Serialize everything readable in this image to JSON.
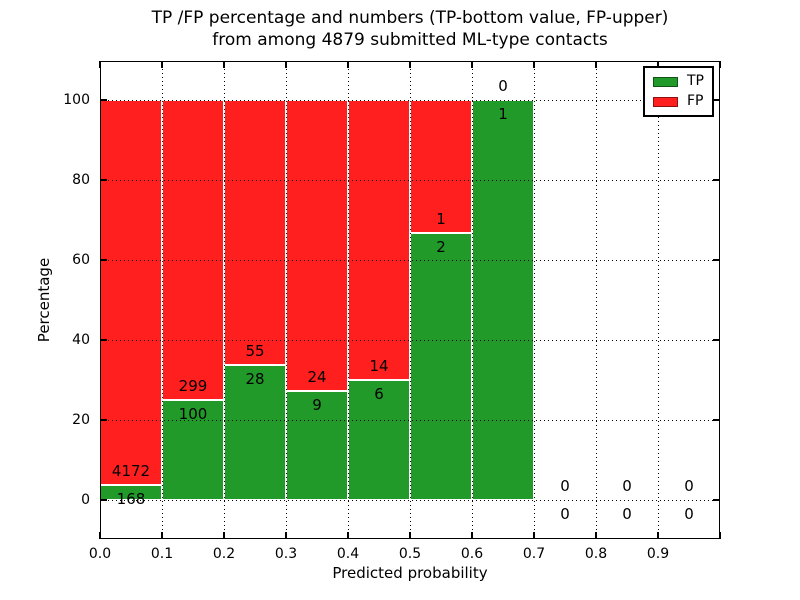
{
  "chart": {
    "title_line1": "TP /FP percentage and numbers (TP-bottom value, FP-upper)",
    "title_line2": "from among 4879 submitted ML-type contacts",
    "xlabel": "Predicted probability",
    "ylabel": "Percentage"
  },
  "chart_data": {
    "type": "bar",
    "stacked": true,
    "normalized": "percent",
    "title": "TP /FP percentage and numbers (TP-bottom value, FP-upper) from among 4879 submitted ML-type contacts",
    "xlabel": "Predicted probability",
    "ylabel": "Percentage",
    "xlim": [
      0.0,
      1.0
    ],
    "ylim": [
      -9.75,
      109.75
    ],
    "x_tick_labels": [
      "0.0",
      "0.1",
      "0.2",
      "0.3",
      "0.4",
      "0.5",
      "0.6",
      "0.7",
      "0.8",
      "0.9"
    ],
    "y_tick_values": [
      0,
      20,
      40,
      60,
      80,
      100
    ],
    "grid": "dotted",
    "legend": {
      "position": "upper right",
      "items": [
        {
          "name": "TP",
          "label": "TP",
          "color": "#229a2a"
        },
        {
          "name": "FP",
          "label": "FP",
          "color": "#ff1f1f"
        }
      ]
    },
    "annotation_rule": "FP count printed above TP/FP boundary, TP count printed below it",
    "bins": [
      {
        "range": [
          0.0,
          0.1
        ],
        "tp_count": 168,
        "fp_count": 4172,
        "tp_pct": 3.87
      },
      {
        "range": [
          0.1,
          0.2
        ],
        "tp_count": 100,
        "fp_count": 299,
        "tp_pct": 25.06
      },
      {
        "range": [
          0.2,
          0.3
        ],
        "tp_count": 28,
        "fp_count": 55,
        "tp_pct": 33.73
      },
      {
        "range": [
          0.3,
          0.4
        ],
        "tp_count": 9,
        "fp_count": 24,
        "tp_pct": 27.27
      },
      {
        "range": [
          0.4,
          0.5
        ],
        "tp_count": 6,
        "fp_count": 14,
        "tp_pct": 30.0
      },
      {
        "range": [
          0.5,
          0.6
        ],
        "tp_count": 2,
        "fp_count": 1,
        "tp_pct": 66.67
      },
      {
        "range": [
          0.6,
          0.7
        ],
        "tp_count": 1,
        "fp_count": 0,
        "tp_pct": 100.0
      },
      {
        "range": [
          0.7,
          0.8
        ],
        "tp_count": 0,
        "fp_count": 0,
        "tp_pct": null
      },
      {
        "range": [
          0.8,
          0.9
        ],
        "tp_count": 0,
        "fp_count": 0,
        "tp_pct": null
      },
      {
        "range": [
          0.9,
          1.0
        ],
        "tp_count": 0,
        "fp_count": 0,
        "tp_pct": null
      }
    ],
    "colors": {
      "tp": "#229a2a",
      "fp": "#ff1f1f",
      "bar_edge": "#ffffff",
      "grid": "#000000",
      "text": "#000000"
    }
  }
}
